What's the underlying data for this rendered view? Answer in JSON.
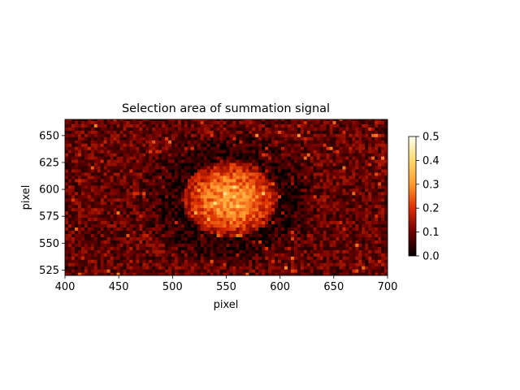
{
  "chart_data": {
    "type": "heatmap",
    "title": "Selection area of summation signal",
    "xlabel": "pixel",
    "ylabel": "pixel",
    "xlim": [
      400,
      700
    ],
    "ylim": [
      520,
      665
    ],
    "x_ticks": [
      400,
      450,
      500,
      550,
      600,
      650,
      700
    ],
    "y_ticks": [
      525,
      550,
      575,
      600,
      625,
      650
    ],
    "colormap": "afmhot",
    "colorbar": {
      "range": [
        0.0,
        0.5
      ],
      "ticks": [
        "0.0",
        "0.1",
        "0.2",
        "0.3",
        "0.4",
        "0.5"
      ]
    },
    "field": {
      "background_level": 0.09,
      "blob": {
        "center_x": 552,
        "center_y": 590,
        "radius_x": 42,
        "radius_y": 34,
        "peak_level": 0.3
      },
      "dark_ring": {
        "center_x": 552,
        "center_y": 590,
        "radius_x": 75,
        "radius_y": 58,
        "level": 0.04
      }
    },
    "colors": {
      "cmap_stops": [
        "#000000",
        "#6e0000",
        "#dc2d00",
        "#ff9a2f",
        "#ffd96c",
        "#ffffee"
      ]
    }
  }
}
